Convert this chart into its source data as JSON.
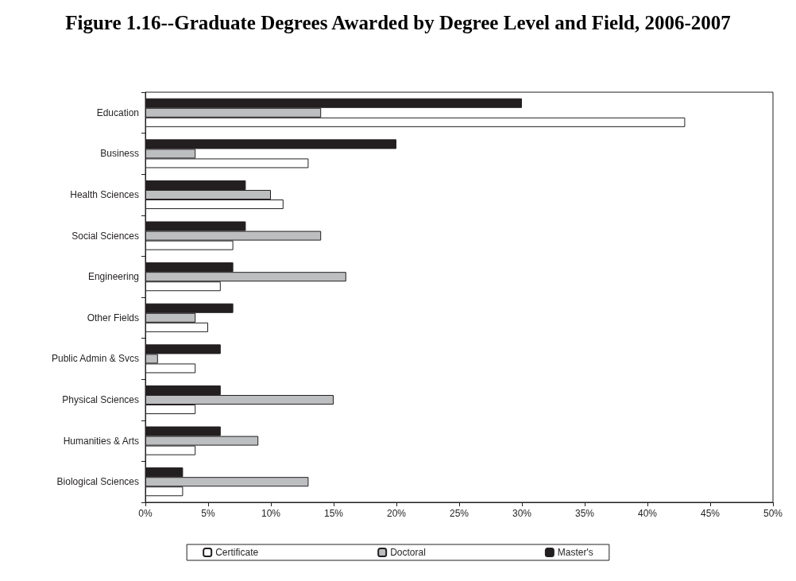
{
  "chart_data": {
    "type": "bar",
    "orientation": "horizontal",
    "title": "Figure 1.16--Graduate Degrees Awarded by Degree Level and Field, 2006-2007",
    "categories": [
      "Education",
      "Business",
      "Health Sciences",
      "Social Sciences",
      "Engineering",
      "Other Fields",
      "Public Admin & Svcs",
      "Physical Sciences",
      "Humanities & Arts",
      "Biological Sciences"
    ],
    "series": [
      {
        "name": "Certificate",
        "color": "#ffffff",
        "values": [
          43,
          13,
          11,
          7,
          6,
          5,
          4,
          4,
          4,
          3
        ]
      },
      {
        "name": "Doctoral",
        "color": "#bcbec0",
        "values": [
          14,
          4,
          10,
          14,
          16,
          4,
          1,
          15,
          9,
          13
        ]
      },
      {
        "name": "Master's",
        "color": "#231f20",
        "values": [
          30,
          20,
          8,
          8,
          7,
          7,
          6,
          6,
          6,
          3
        ]
      }
    ],
    "xlim": [
      0,
      50
    ],
    "xticks": [
      {
        "value": 0,
        "label": "0%"
      },
      {
        "value": 5,
        "label": "5%"
      },
      {
        "value": 10,
        "label": "10%"
      },
      {
        "value": 15,
        "label": "15%"
      },
      {
        "value": 20,
        "label": "20%"
      },
      {
        "value": 25,
        "label": "25%"
      },
      {
        "value": 30,
        "label": "30%"
      },
      {
        "value": 35,
        "label": "35%"
      },
      {
        "value": 40,
        "label": "40%"
      },
      {
        "value": 45,
        "label": "45%"
      },
      {
        "value": 50,
        "label": "50%"
      }
    ],
    "grid": false,
    "legend": "bottom"
  }
}
